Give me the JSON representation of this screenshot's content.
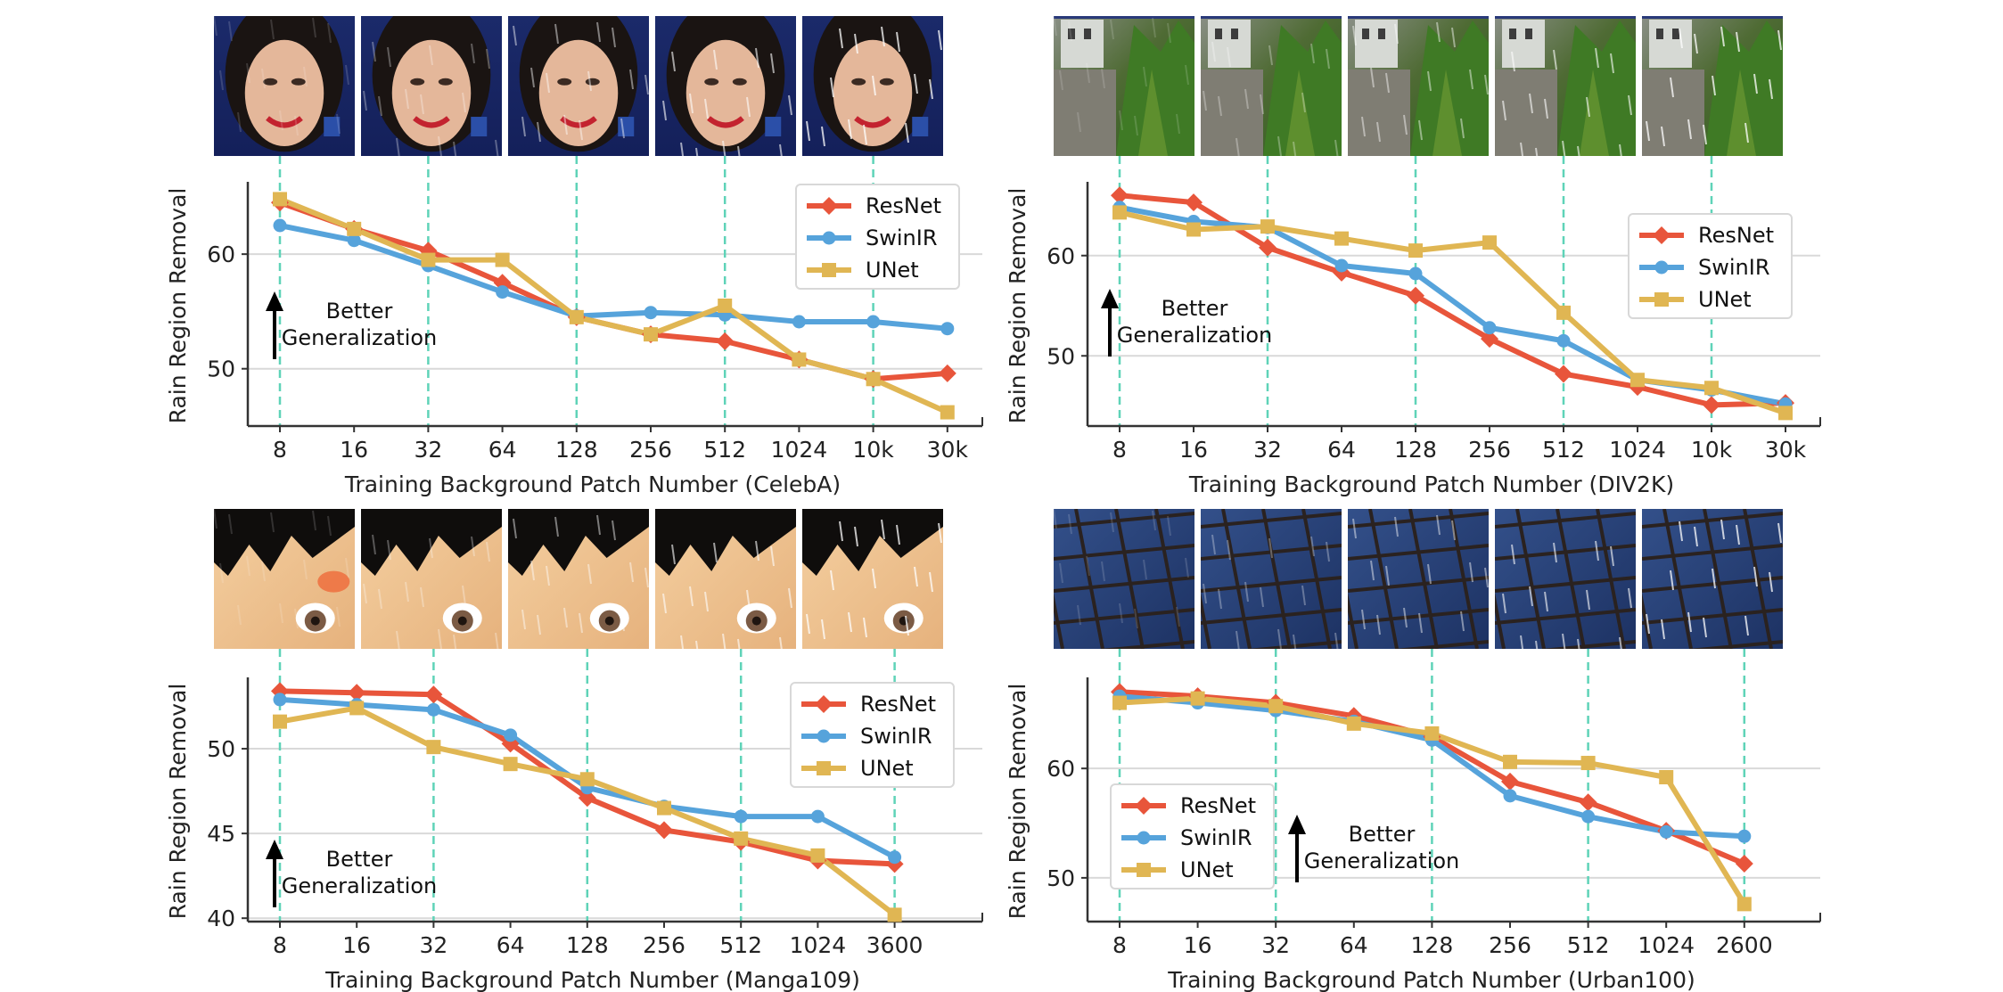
{
  "chart_data": [
    {
      "type": "line",
      "categories": [
        "8",
        "16",
        "32",
        "64",
        "128",
        "256",
        "512",
        "1024",
        "10k",
        "30k"
      ],
      "xlabel": "Training Background Patch Number (CelebA)",
      "ylabel": "Rain Region Removal",
      "ylim": [
        45,
        66
      ],
      "yticks": [
        50,
        60
      ],
      "grid": "horizontal",
      "legend": "top-right",
      "annotation": {
        "line1": "Better",
        "line2": "Generalization"
      },
      "thumbnail_categories": [
        "8",
        "32",
        "128",
        "512",
        "10k"
      ],
      "thumbnail_scene": "face",
      "series": [
        {
          "name": "ResNet",
          "color": "#e8553b",
          "marker": "diamond",
          "values": [
            64.5,
            62.2,
            60.3,
            57.5,
            54.5,
            53.0,
            52.4,
            50.8,
            49.1,
            49.6
          ]
        },
        {
          "name": "SwinIR",
          "color": "#56a3db",
          "marker": "circle",
          "values": [
            62.5,
            61.2,
            59.0,
            56.7,
            54.6,
            54.9,
            54.7,
            54.1,
            54.1,
            53.5
          ]
        },
        {
          "name": "UNet",
          "color": "#e0b653",
          "marker": "square",
          "values": [
            64.8,
            62.2,
            59.5,
            59.5,
            54.5,
            53.0,
            55.5,
            50.8,
            49.1,
            46.2
          ]
        }
      ]
    },
    {
      "type": "line",
      "categories": [
        "8",
        "16",
        "32",
        "64",
        "128",
        "256",
        "512",
        "1024",
        "10k",
        "30k"
      ],
      "xlabel": "Training Background Patch Number (DIV2K)",
      "ylabel": "Rain Region Removal",
      "ylim": [
        43,
        67
      ],
      "yticks": [
        50,
        60
      ],
      "grid": "horizontal",
      "legend": "right",
      "annotation": {
        "line1": "Better",
        "line2": "Generalization"
      },
      "thumbnail_categories": [
        "8",
        "32",
        "128",
        "512",
        "10k"
      ],
      "thumbnail_scene": "castle",
      "series": [
        {
          "name": "ResNet",
          "color": "#e8553b",
          "marker": "diamond",
          "values": [
            66.0,
            65.3,
            60.8,
            58.3,
            56.0,
            51.7,
            48.2,
            46.9,
            45.1,
            45.3
          ]
        },
        {
          "name": "SwinIR",
          "color": "#56a3db",
          "marker": "circle",
          "values": [
            64.8,
            63.4,
            62.8,
            59.0,
            58.2,
            52.8,
            51.5,
            47.6,
            46.6,
            45.2
          ]
        },
        {
          "name": "UNet",
          "color": "#e0b653",
          "marker": "square",
          "values": [
            64.3,
            62.6,
            62.9,
            61.7,
            60.5,
            61.3,
            54.3,
            47.6,
            46.8,
            44.3
          ]
        }
      ]
    },
    {
      "type": "line",
      "categories": [
        "8",
        "16",
        "32",
        "64",
        "128",
        "256",
        "512",
        "1024",
        "3600"
      ],
      "xlabel": "Training Background Patch Number (Manga109)",
      "ylabel": "Rain Region Removal",
      "ylim": [
        39.8,
        54
      ],
      "yticks": [
        40,
        45,
        50
      ],
      "grid": "horizontal",
      "legend": "top-right",
      "annotation": {
        "line1": "Better",
        "line2": "Generalization"
      },
      "thumbnail_categories": [
        "8",
        "32",
        "128",
        "512",
        "3600"
      ],
      "thumbnail_scene": "manga",
      "series": [
        {
          "name": "ResNet",
          "color": "#e8553b",
          "marker": "diamond",
          "values": [
            53.4,
            53.3,
            53.2,
            50.3,
            47.1,
            45.2,
            44.5,
            43.4,
            43.2
          ]
        },
        {
          "name": "SwinIR",
          "color": "#56a3db",
          "marker": "circle",
          "values": [
            52.9,
            52.6,
            52.3,
            50.8,
            47.7,
            46.6,
            46.0,
            46.0,
            43.6
          ]
        },
        {
          "name": "UNet",
          "color": "#e0b653",
          "marker": "square",
          "values": [
            51.6,
            52.4,
            50.1,
            49.1,
            48.2,
            46.5,
            44.7,
            43.7,
            40.2
          ]
        }
      ]
    },
    {
      "type": "line",
      "categories": [
        "8",
        "16",
        "32",
        "64",
        "128",
        "256",
        "512",
        "1024",
        "2600"
      ],
      "xlabel": "Training Background Patch Number (Urban100)",
      "ylabel": "Rain Region Removal",
      "ylim": [
        46,
        68
      ],
      "yticks": [
        50,
        60
      ],
      "grid": "horizontal",
      "legend": "left",
      "annotation": {
        "line1": "Better",
        "line2": "Generalization"
      },
      "thumbnail_categories": [
        "8",
        "32",
        "128",
        "512",
        "2600"
      ],
      "thumbnail_scene": "glass-building",
      "series": [
        {
          "name": "ResNet",
          "color": "#e8553b",
          "marker": "diamond",
          "values": [
            67.0,
            66.6,
            66.0,
            64.8,
            62.9,
            58.8,
            56.9,
            54.3,
            51.3
          ]
        },
        {
          "name": "SwinIR",
          "color": "#56a3db",
          "marker": "circle",
          "values": [
            66.6,
            66.0,
            65.3,
            64.3,
            62.6,
            57.5,
            55.6,
            54.2,
            53.8
          ]
        },
        {
          "name": "UNet",
          "color": "#e0b653",
          "marker": "square",
          "values": [
            66.0,
            66.4,
            65.7,
            64.1,
            63.2,
            60.6,
            60.5,
            59.2,
            47.6
          ]
        }
      ]
    }
  ]
}
